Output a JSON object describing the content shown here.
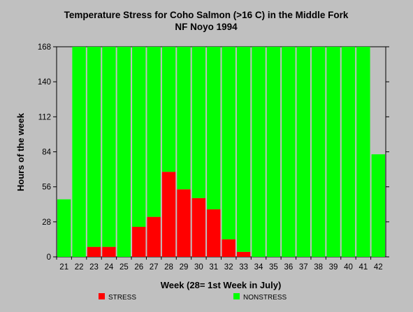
{
  "chart_data": {
    "type": "bar",
    "stacked": true,
    "title": "Temperature Stress for Coho Salmon (>16 C) in the Middle Fork",
    "subtitle": "NF Noyo 1994",
    "xlabel": "Week (28= 1st Week in July)",
    "ylabel": "Hours of the week",
    "ylim": [
      0,
      168
    ],
    "yticks": [
      0,
      28,
      56,
      84,
      112,
      140,
      168
    ],
    "categories": [
      "21",
      "22",
      "23",
      "24",
      "25",
      "26",
      "27",
      "28",
      "29",
      "30",
      "31",
      "32",
      "33",
      "34",
      "35",
      "36",
      "37",
      "38",
      "39",
      "40",
      "41",
      "42"
    ],
    "series": [
      {
        "name": "STRESS",
        "color": "#ff0000",
        "values": [
          0,
          0,
          8,
          8,
          0,
          24,
          32,
          68,
          54,
          47,
          38,
          14,
          4,
          0,
          0,
          0,
          0,
          0,
          0,
          0,
          0,
          0
        ]
      },
      {
        "name": "NONSTRESS",
        "color": "#00ff00",
        "values": [
          46,
          168,
          160,
          160,
          168,
          144,
          136,
          100,
          114,
          121,
          130,
          154,
          164,
          168,
          168,
          168,
          168,
          168,
          168,
          168,
          168,
          82
        ]
      }
    ],
    "grid": false,
    "legend_position": "bottom"
  }
}
